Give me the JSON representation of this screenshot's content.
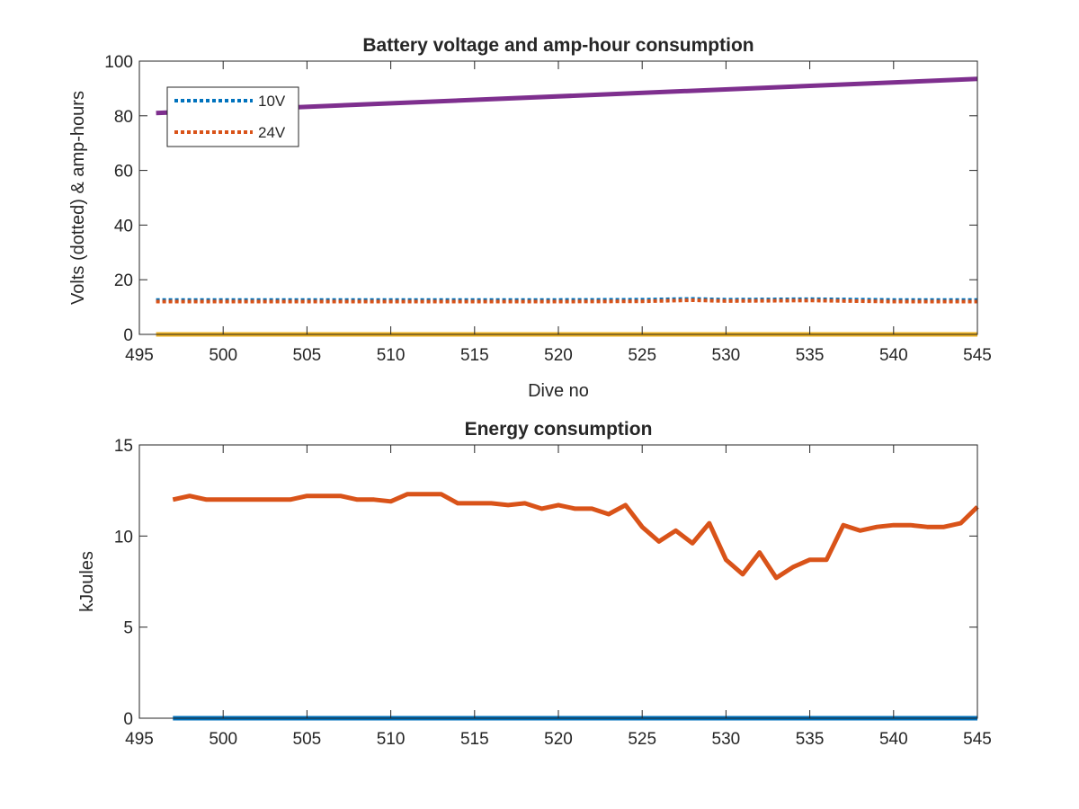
{
  "chart_data": [
    {
      "type": "line",
      "title": "Battery voltage and amp-hour consumption",
      "xlabel": "Dive no",
      "ylabel": "Volts (dotted) & amp-hours",
      "xlim": [
        495,
        545
      ],
      "ylim": [
        0,
        100
      ],
      "xticks": [
        "495",
        "500",
        "505",
        "510",
        "515",
        "520",
        "525",
        "530",
        "535",
        "540",
        "545"
      ],
      "yticks": [
        "0",
        "20",
        "40",
        "60",
        "80",
        "100"
      ],
      "grid": false,
      "legend_position": "top-left",
      "series": [
        {
          "name": "10V",
          "style": "dotted",
          "color": "#0072BD",
          "x": [
            496,
            500,
            505,
            510,
            515,
            520,
            525,
            528,
            530,
            535,
            540,
            545
          ],
          "y": [
            12.6,
            12.6,
            12.6,
            12.6,
            12.6,
            12.6,
            12.7,
            13.0,
            12.7,
            12.9,
            12.6,
            12.6
          ]
        },
        {
          "name": "24V",
          "style": "dotted",
          "color": "#D95319",
          "x": [
            496,
            500,
            505,
            510,
            515,
            520,
            525,
            528,
            530,
            535,
            540,
            545
          ],
          "y": [
            12.0,
            12.0,
            12.0,
            12.0,
            12.0,
            12.0,
            12.1,
            12.5,
            12.2,
            12.4,
            12.0,
            12.0
          ]
        },
        {
          "style": "solid",
          "color": "#EDB120",
          "x": [
            496,
            545
          ],
          "y": [
            0,
            0
          ]
        },
        {
          "style": "solid",
          "color": "#7E2F8E",
          "x": [
            496,
            545
          ],
          "y": [
            81,
            93.5
          ]
        }
      ]
    },
    {
      "type": "line",
      "title": "Energy consumption",
      "xlabel": "",
      "ylabel": "kJoules",
      "xlim": [
        495,
        545
      ],
      "ylim": [
        0,
        15
      ],
      "xticks": [
        "495",
        "500",
        "505",
        "510",
        "515",
        "520",
        "525",
        "530",
        "535",
        "540",
        "545"
      ],
      "yticks": [
        "0",
        "5",
        "10",
        "15"
      ],
      "grid": false,
      "series": [
        {
          "color": "#0072BD",
          "x": [
            497,
            545
          ],
          "y": [
            0,
            0
          ]
        },
        {
          "color": "#D95319",
          "x": [
            497,
            498,
            499,
            500,
            501,
            502,
            503,
            504,
            505,
            506,
            507,
            508,
            509,
            510,
            511,
            512,
            513,
            514,
            515,
            516,
            517,
            518,
            519,
            520,
            521,
            522,
            523,
            524,
            525,
            526,
            527,
            528,
            529,
            530,
            531,
            532,
            533,
            534,
            535,
            536,
            537,
            538,
            539,
            540,
            541,
            542,
            543,
            544,
            545
          ],
          "y": [
            12.0,
            12.2,
            12.0,
            12.0,
            12.0,
            12.0,
            12.0,
            12.0,
            12.2,
            12.2,
            12.2,
            12.0,
            12.0,
            11.9,
            12.3,
            12.3,
            12.3,
            11.8,
            11.8,
            11.8,
            11.7,
            11.8,
            11.5,
            11.7,
            11.5,
            11.5,
            11.2,
            11.7,
            10.5,
            9.7,
            10.3,
            9.6,
            10.7,
            8.7,
            7.9,
            9.1,
            7.7,
            8.3,
            8.7,
            8.7,
            10.6,
            10.3,
            10.5,
            10.6,
            10.6,
            10.5,
            10.5,
            10.7,
            11.6
          ]
        }
      ]
    }
  ]
}
